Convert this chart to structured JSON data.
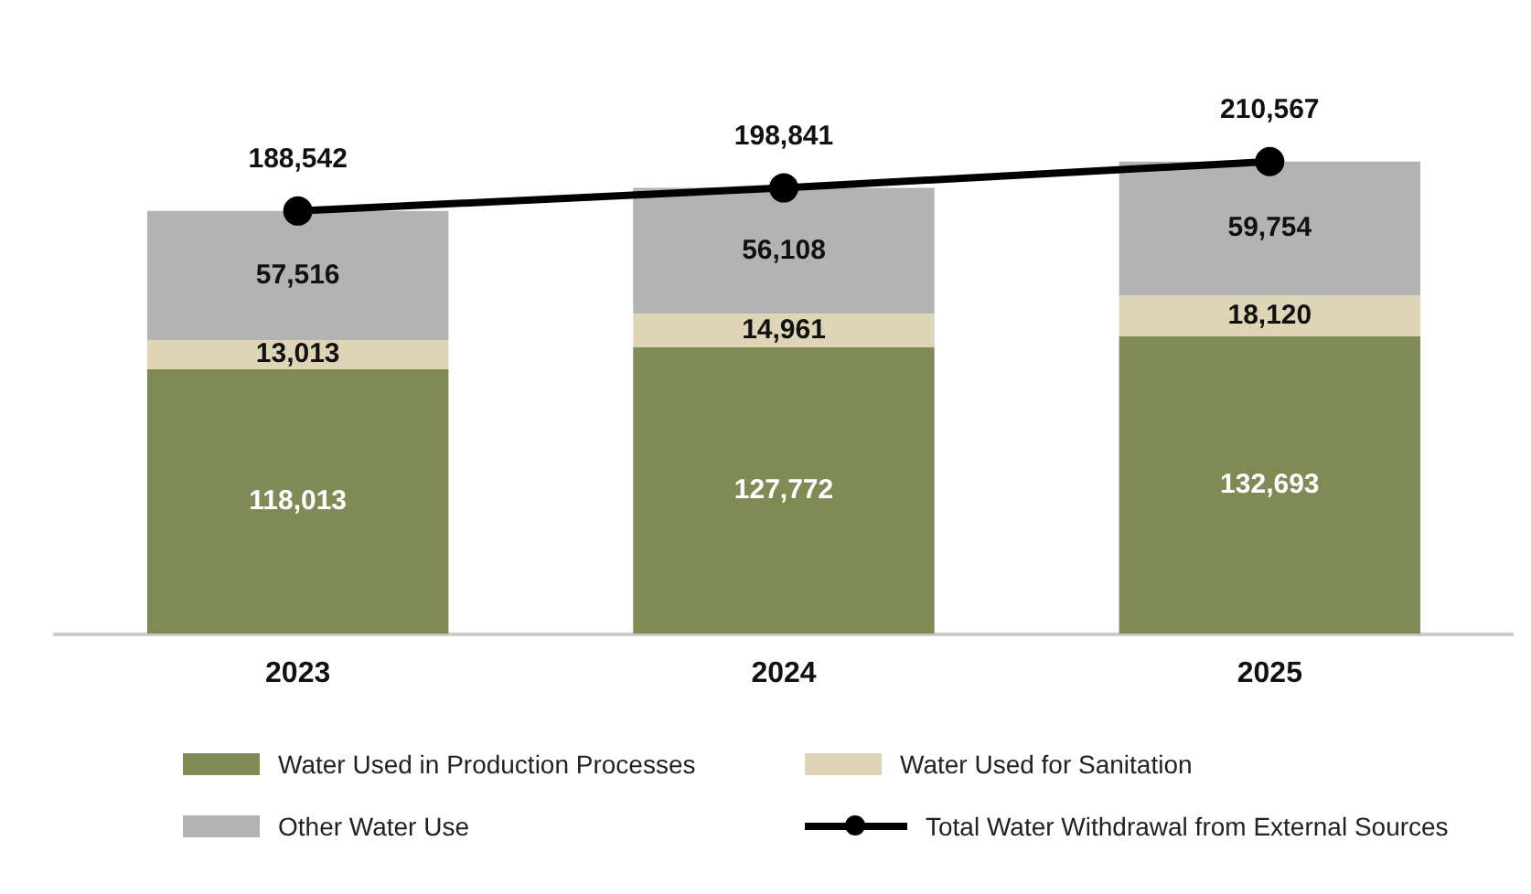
{
  "chart_data": {
    "type": "bar",
    "stacked": true,
    "categories": [
      "2023",
      "2024",
      "2025"
    ],
    "series": [
      {
        "name": "Water Used in Production Processes",
        "color": "#7f8a55",
        "values": [
          118013,
          127772,
          132693
        ],
        "value_labels": [
          "118,013",
          "127,772",
          "132,693"
        ]
      },
      {
        "name": "Water Used for Sanitation",
        "color": "#ddd5b5",
        "values": [
          13013,
          14961,
          18120
        ],
        "value_labels": [
          "13,013",
          "14,961",
          "18,120"
        ]
      },
      {
        "name": "Other Water Use",
        "color": "#b3b3b3",
        "values": [
          57516,
          56108,
          59754
        ],
        "value_labels": [
          "57,516",
          "56,108",
          "59,754"
        ]
      },
      {
        "name": "Total Water Withdrawal from External Sources",
        "type": "line",
        "color": "#000000",
        "values": [
          188542,
          198841,
          210567
        ],
        "value_labels": [
          "188,542",
          "198,841",
          "210,567"
        ]
      }
    ],
    "legend": "bottom",
    "marker": "circle",
    "line_style": "solid",
    "grid": false,
    "tick_labels": "x"
  }
}
